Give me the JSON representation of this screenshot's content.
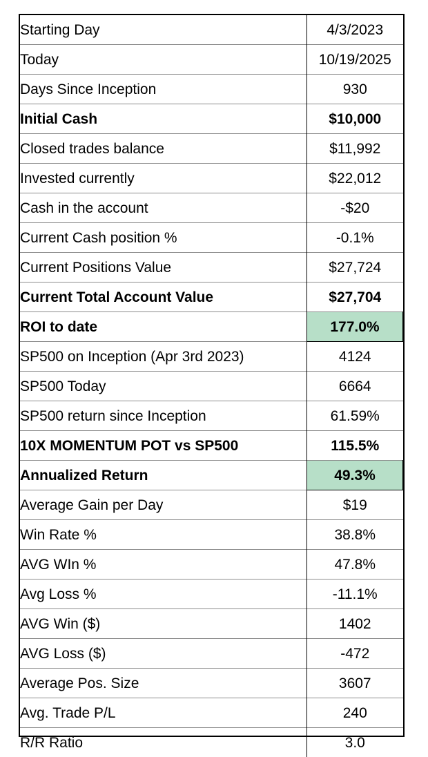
{
  "colors": {
    "highlight": "#b7dfc8",
    "border": "#000000",
    "grid": "#8a8a8a"
  },
  "rows": [
    {
      "label": "Starting Day",
      "value": "4/3/2023",
      "bold": false,
      "highlight": false
    },
    {
      "label": "Today",
      "value": "10/19/2025",
      "bold": false,
      "highlight": false
    },
    {
      "label": "Days Since Inception",
      "value": "930",
      "bold": false,
      "highlight": false
    },
    {
      "label": "Initial Cash",
      "value": "$10,000",
      "bold": true,
      "highlight": false
    },
    {
      "label": "Closed trades balance",
      "value": "$11,992",
      "bold": false,
      "highlight": false
    },
    {
      "label": "Invested currently",
      "value": "$22,012",
      "bold": false,
      "highlight": false
    },
    {
      "label": "Cash in the account",
      "value": "-$20",
      "bold": false,
      "highlight": false
    },
    {
      "label": "Current Cash position %",
      "value": "-0.1%",
      "bold": false,
      "highlight": false
    },
    {
      "label": "Current Positions Value",
      "value": "$27,724",
      "bold": false,
      "highlight": false
    },
    {
      "label": "Current Total Account Value",
      "value": "$27,704",
      "bold": true,
      "highlight": false
    },
    {
      "label": "ROI to date",
      "value": "177.0%",
      "bold": true,
      "highlight": true
    },
    {
      "label": "SP500 on Inception (Apr 3rd 2023)",
      "value": "4124",
      "bold": false,
      "highlight": false
    },
    {
      "label": "SP500 Today",
      "value": "6664",
      "bold": false,
      "highlight": false
    },
    {
      "label": "SP500 return since Inception",
      "value": "61.59%",
      "bold": false,
      "highlight": false
    },
    {
      "label": "10X MOMENTUM POT vs SP500",
      "value": "115.5%",
      "bold": true,
      "highlight": false
    },
    {
      "label": "Annualized Return",
      "value": "49.3%",
      "bold": true,
      "highlight": true
    },
    {
      "label": "Average Gain per Day",
      "value": "$19",
      "bold": false,
      "highlight": false
    },
    {
      "label": "Win Rate %",
      "value": "38.8%",
      "bold": false,
      "highlight": false
    },
    {
      "label": "AVG WIn %",
      "value": "47.8%",
      "bold": false,
      "highlight": false
    },
    {
      "label": "Avg Loss %",
      "value": "-11.1%",
      "bold": false,
      "highlight": false
    },
    {
      "label": "AVG Win ($)",
      "value": "1402",
      "bold": false,
      "highlight": false
    },
    {
      "label": "AVG Loss ($)",
      "value": "-472",
      "bold": false,
      "highlight": false
    },
    {
      "label": "Average Pos. Size",
      "value": "3607",
      "bold": false,
      "highlight": false
    },
    {
      "label": "Avg. Trade P/L",
      "value": "240",
      "bold": false,
      "highlight": false
    },
    {
      "label": "R/R Ratio",
      "value": "3.0",
      "bold": false,
      "highlight": false
    }
  ]
}
